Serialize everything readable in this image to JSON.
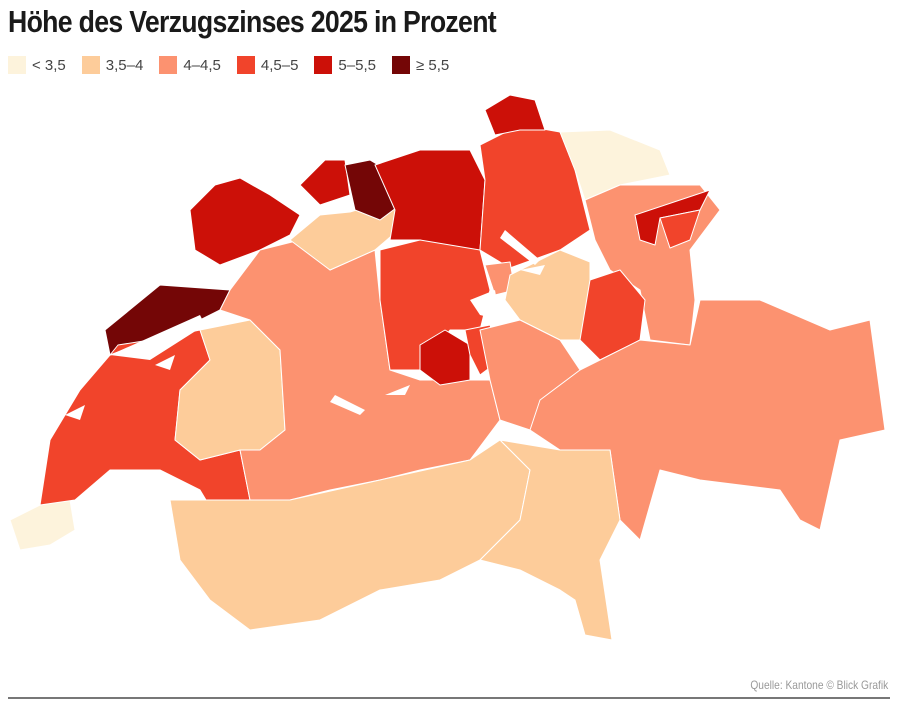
{
  "title": "Höhe des Verzugszinses 2025 in Prozent",
  "legend": [
    {
      "label": "< 3,5",
      "color": "#fdf3dc"
    },
    {
      "label": "3,5–4",
      "color": "#fdcc9a"
    },
    {
      "label": "4–4,5",
      "color": "#fc9270"
    },
    {
      "label": "4,5–5",
      "color": "#f1442b"
    },
    {
      "label": "5–5,5",
      "color": "#cc1008"
    },
    {
      "label": "≥ 5,5",
      "color": "#740606"
    }
  ],
  "regions": [
    {
      "class": 0
    },
    {
      "class": 3
    },
    {
      "class": 5
    },
    {
      "class": 4
    },
    {
      "class": 1
    },
    {
      "class": 2
    },
    {
      "class": 1
    },
    {
      "class": 1
    },
    {
      "class": 4
    },
    {
      "class": 5
    },
    {
      "class": 4
    },
    {
      "class": 3
    },
    {
      "class": 4
    },
    {
      "class": 0
    },
    {
      "class": 2
    },
    {
      "class": 4
    },
    {
      "class": 3
    },
    {
      "class": 3
    },
    {
      "class": 4
    },
    {
      "class": 3
    },
    {
      "class": 2
    },
    {
      "class": 1
    },
    {
      "class": 3
    },
    {
      "class": 2
    },
    {
      "class": 2
    },
    {
      "class": 1
    },
    {
      "class": 3
    }
  ],
  "source": "Quelle: Kantone © Blick Grafik"
}
